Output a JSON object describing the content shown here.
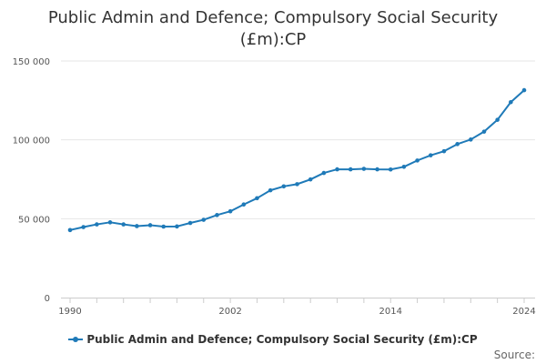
{
  "chart_data": {
    "type": "line",
    "title_lines": [
      "Public Admin and Defence; Compulsory Social Security",
      "(£m):CP"
    ],
    "xlabel": "",
    "ylabel": "",
    "xlim": [
      1990,
      2024
    ],
    "ylim": [
      0,
      150000
    ],
    "grid": true,
    "legend_position": "bottom",
    "y_ticks": [
      {
        "value": 0,
        "label": "0"
      },
      {
        "value": 50000,
        "label": "50 000"
      },
      {
        "value": 100000,
        "label": "100 000"
      },
      {
        "value": 150000,
        "label": "150 000"
      }
    ],
    "x_ticks": [
      {
        "value": 1990,
        "label": "1990"
      },
      {
        "value": 2002,
        "label": "2002"
      },
      {
        "value": 2014,
        "label": "2014"
      },
      {
        "value": 2024,
        "label": "2024"
      }
    ],
    "x_minor_ticks": [
      1990,
      1992,
      1994,
      1996,
      1998,
      2000,
      2002,
      2004,
      2006,
      2008,
      2010,
      2012,
      2014,
      2016,
      2018,
      2020,
      2022,
      2024
    ],
    "series": [
      {
        "name": "Public Admin and Defence; Compulsory Social Security (£m):CP",
        "color": "#1f7ab8",
        "x": [
          1990,
          1991,
          1992,
          1993,
          1994,
          1995,
          1996,
          1997,
          1998,
          1999,
          2000,
          2001,
          2002,
          2003,
          2004,
          2005,
          2006,
          2007,
          2008,
          2009,
          2010,
          2011,
          2012,
          2013,
          2014,
          2015,
          2016,
          2017,
          2018,
          2019,
          2020,
          2021,
          2022,
          2023,
          2024
        ],
        "values": [
          42800,
          44700,
          46400,
          47700,
          46400,
          45300,
          45900,
          45000,
          45100,
          47300,
          49300,
          52300,
          54700,
          59000,
          63000,
          68000,
          70500,
          71900,
          74900,
          79000,
          81300,
          81300,
          81600,
          81300,
          81200,
          82900,
          86900,
          90200,
          92800,
          97300,
          100200,
          105200,
          112700,
          123900,
          131500
        ]
      }
    ]
  },
  "legend": {
    "label": "Public Admin and Defence; Compulsory Social Security (£m):CP"
  },
  "footer": {
    "source_label": "Source:"
  }
}
